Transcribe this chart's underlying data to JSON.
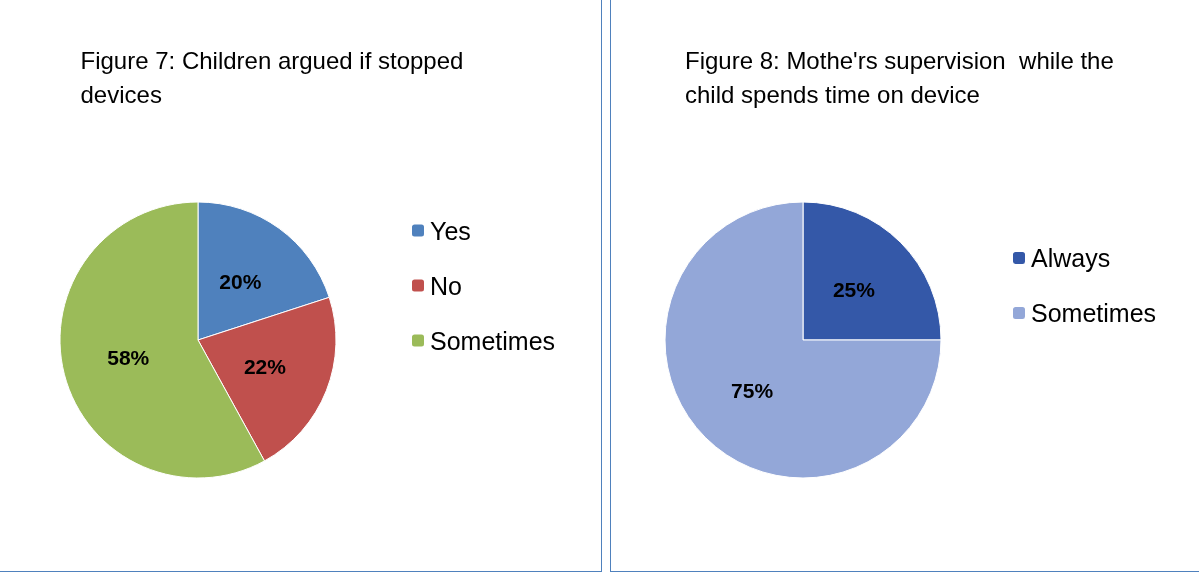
{
  "chart_data": [
    {
      "type": "pie",
      "title": "Figure 7: Children argued if stopped devices",
      "categories": [
        "Yes",
        "No",
        "Sometimes"
      ],
      "values": [
        20,
        22,
        58
      ],
      "value_labels": [
        "20%",
        "22%",
        "58%"
      ],
      "colors": [
        "#4f81bd",
        "#c0504d",
        "#9bbb59"
      ],
      "legend": "right"
    },
    {
      "type": "pie",
      "title": "Figure 8: Mothe'rs supervision  while the child spends time on device",
      "categories": [
        "Always",
        "Sometimes"
      ],
      "values": [
        25,
        75
      ],
      "value_labels": [
        "25%",
        "75%"
      ],
      "colors": [
        "#3458a8",
        "#93a7d8"
      ],
      "legend": "right"
    }
  ]
}
